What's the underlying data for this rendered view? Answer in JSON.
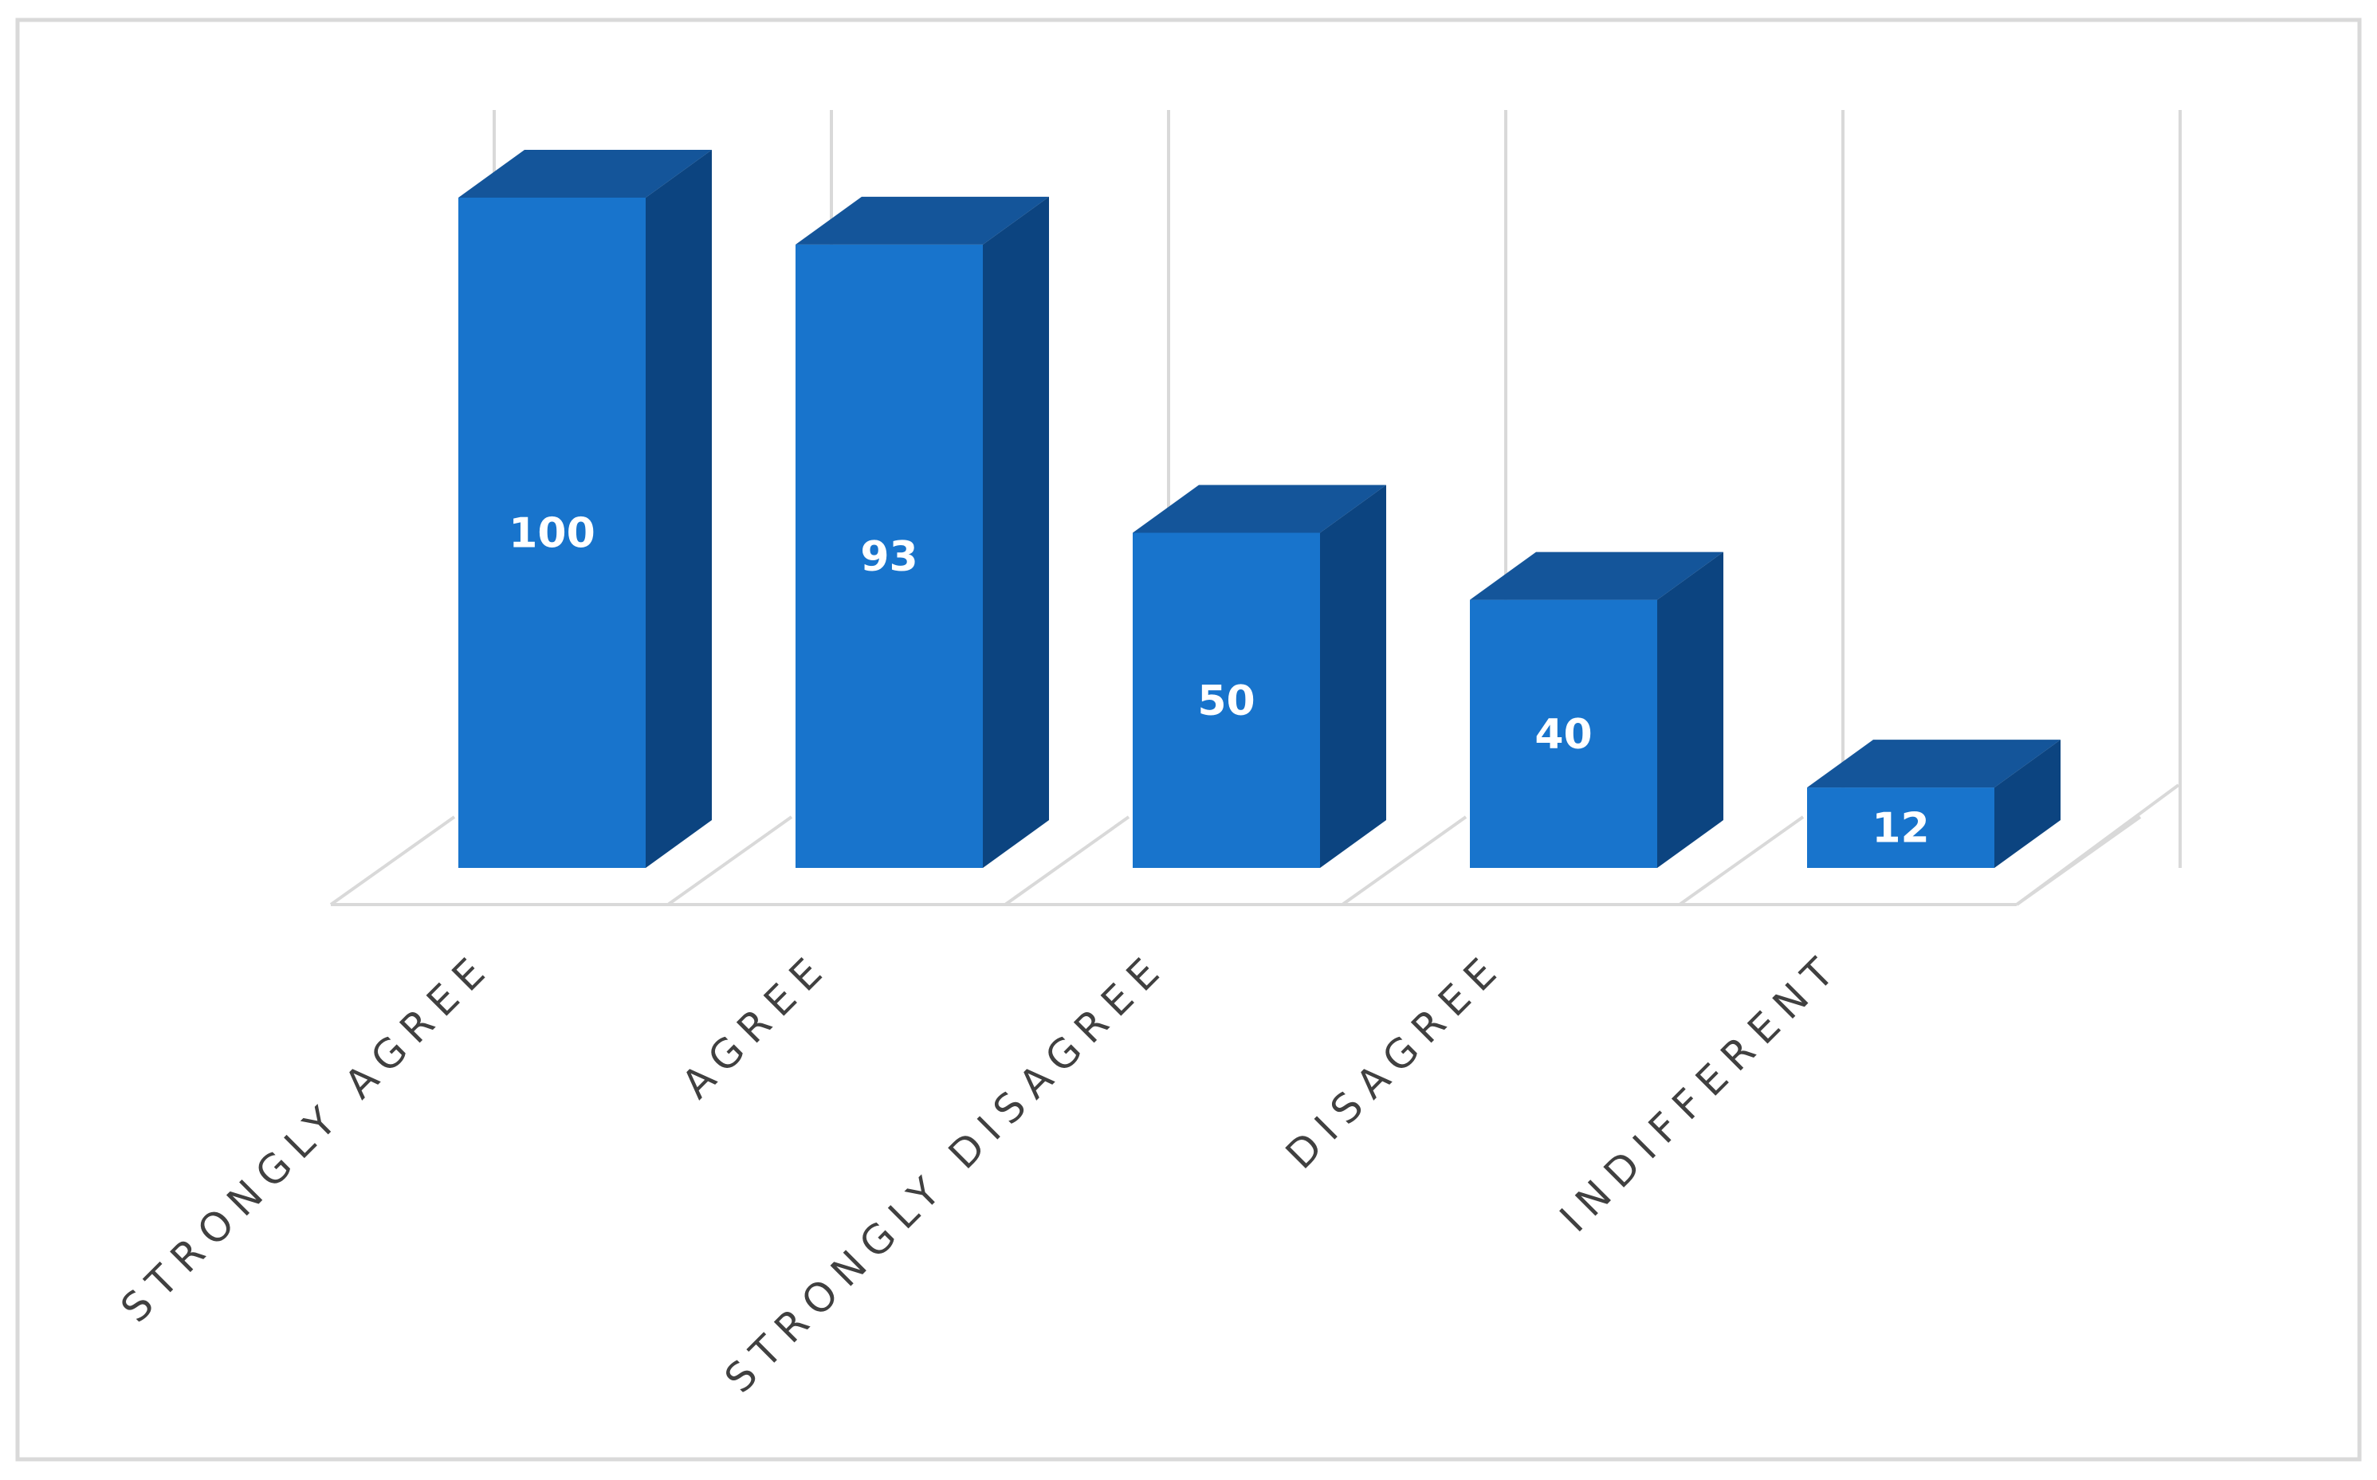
{
  "chart_data": {
    "type": "bar",
    "style": "3d-column",
    "categories": [
      "STRONGLY AGREE",
      "AGREE",
      "STRONGLY DISAGREE",
      "DISAGREE",
      "INDIFFERENT"
    ],
    "values": [
      100,
      93,
      50,
      40,
      12
    ],
    "data_labels": [
      "100",
      "93",
      "50",
      "40",
      "12"
    ],
    "title": "",
    "xlabel": "",
    "ylabel": "",
    "ylim": [
      0,
      100
    ],
    "grid": true,
    "legend": "none",
    "colors": {
      "front": "#1874cc",
      "top": "#14559a",
      "side": "#0c4480",
      "grid": "#d9d9d9",
      "axis_text": "#404040",
      "frame": "#d9d9d9"
    }
  }
}
